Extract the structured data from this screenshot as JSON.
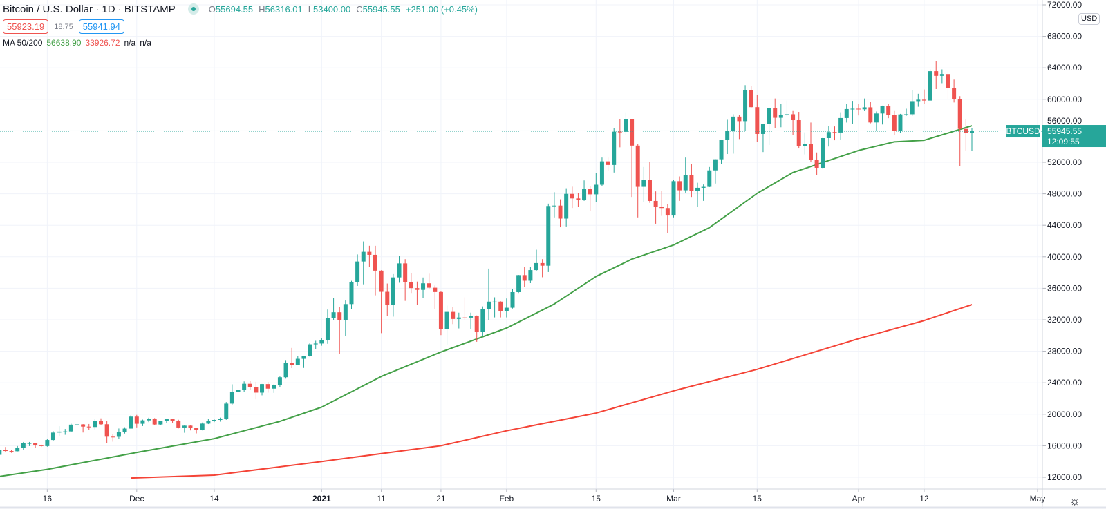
{
  "header": {
    "title": "Bitcoin / U.S. Dollar · 1D · BITSTAMP",
    "ohlc": {
      "o_label": "O",
      "o": "55694.55",
      "h_label": "H",
      "h": "56316.01",
      "l_label": "L",
      "l": "53400.00",
      "c_label": "C",
      "c": "55945.55",
      "change": "+251.00 (+0.45%)"
    },
    "bid": "55923.19",
    "spread": "18.75",
    "ask": "55941.94",
    "ma_label": "MA 50/200",
    "ma50_value": "56638.90",
    "ma200_value": "33926.72",
    "na1": "n/a",
    "na2": "n/a"
  },
  "price_axis": {
    "currency_button": "USD",
    "symbol_tag": "BTCUSD",
    "last_price": "55945.55",
    "countdown": "12:09:55"
  },
  "colors": {
    "up": "#26a69a",
    "down": "#ef5350",
    "ma50": "#43a047",
    "ma200": "#f44336",
    "grid": "#f0f3fa"
  },
  "chart_data": {
    "type": "candlestick",
    "first_date": "2020-11-08",
    "first_open": 14850,
    "close": [
      15480,
      15330,
      15300,
      15700,
      16300,
      16330,
      16070,
      15960,
      16730,
      17670,
      17800,
      17820,
      18680,
      18710,
      18430,
      18380,
      19170,
      18730,
      17150,
      17140,
      17730,
      18180,
      19700,
      18790,
      19220,
      19450,
      18700,
      19150,
      19370,
      19190,
      18320,
      18550,
      18250,
      18040,
      18810,
      19160,
      19280,
      19440,
      21350,
      22840,
      23110,
      23870,
      23480,
      22750,
      23830,
      23250,
      23720,
      24700,
      26490,
      26280,
      27040,
      27360,
      28880,
      28980,
      29380,
      32190,
      32950,
      31970,
      33990,
      36800,
      39400,
      40630,
      40250,
      38240,
      35550,
      33910,
      37380,
      39160,
      36770,
      36020,
      35800,
      36630,
      36070,
      35520,
      30830,
      33000,
      32100,
      32290,
      32270,
      32510,
      30430,
      33400,
      34300,
      34300,
      33110,
      33530,
      35510,
      37670,
      36960,
      38310,
      39200,
      38870,
      46450,
      46500,
      44850,
      47990,
      47410,
      47250,
      48600,
      47930,
      49150,
      52120,
      51660,
      55890,
      55870,
      57480,
      54120,
      48880,
      49740,
      47090,
      46340,
      46190,
      45240,
      49600,
      48440,
      50350,
      48380,
      48760,
      48880,
      50970,
      52380,
      54880,
      55960,
      57800,
      57230,
      61190,
      59000,
      55600,
      56900,
      58900,
      57650,
      58030,
      58100,
      57350,
      54080,
      54340,
      52300,
      51300,
      55070,
      55840,
      55780,
      57620,
      58760,
      58800,
      58730,
      58980,
      57060,
      58200,
      59130,
      58050,
      56000,
      58080,
      58100,
      59770,
      59950,
      59840,
      63570,
      62980,
      63210,
      61390,
      60070,
      56240,
      55694.55,
      55945.55
    ],
    "high": [
      15650,
      15840,
      15480,
      15960,
      16480,
      16480,
      16330,
      16140,
      16880,
      17850,
      18480,
      18130,
      18800,
      18960,
      18750,
      18760,
      19420,
      19480,
      19160,
      17450,
      18190,
      18350,
      19850,
      19920,
      19320,
      19560,
      19510,
      19180,
      19400,
      19420,
      19300,
      18650,
      18570,
      18300,
      18950,
      19400,
      19350,
      19570,
      21550,
      23800,
      23290,
      24170,
      24280,
      24120,
      23850,
      24100,
      23800,
      24800,
      26880,
      28420,
      27410,
      27400,
      29000,
      29330,
      29690,
      33300,
      34800,
      33600,
      34450,
      36950,
      40300,
      41950,
      41400,
      41400,
      38300,
      36600,
      37800,
      40100,
      39700,
      37950,
      36850,
      37370,
      37850,
      36350,
      35600,
      33800,
      33650,
      32900,
      34850,
      32900,
      32550,
      33700,
      38500,
      34850,
      34350,
      34700,
      35900,
      37700,
      38700,
      38700,
      40900,
      39700,
      46750,
      48200,
      47300,
      48700,
      48900,
      48100,
      49700,
      49000,
      50600,
      52600,
      52600,
      56350,
      57500,
      58350,
      57500,
      54300,
      51400,
      52000,
      48300,
      48400,
      46650,
      49800,
      50200,
      52600,
      51800,
      49400,
      49180,
      51400,
      52400,
      54880,
      57400,
      58100,
      58000,
      61800,
      61700,
      60600,
      56900,
      58950,
      60100,
      59450,
      59850,
      58600,
      58400,
      55800,
      57050,
      53250,
      55100,
      56600,
      56550,
      58350,
      59400,
      59800,
      59450,
      60100,
      59700,
      58450,
      59200,
      59450,
      58600,
      58150,
      58800,
      61200,
      60700,
      61250,
      63800,
      64850,
      63800,
      63550,
      62500,
      60400,
      57450,
      56316.01
    ],
    "low": [
      14800,
      15200,
      15100,
      15280,
      15440,
      15960,
      15730,
      15850,
      15880,
      16560,
      17220,
      17390,
      17740,
      18430,
      17680,
      18000,
      18080,
      18600,
      16300,
      16520,
      16880,
      17550,
      18180,
      18330,
      18500,
      19000,
      18580,
      18610,
      18910,
      18910,
      18200,
      17650,
      17950,
      17570,
      17950,
      18750,
      19000,
      19060,
      19290,
      21230,
      22350,
      22800,
      23090,
      21900,
      22400,
      22750,
      22720,
      23450,
      24520,
      25860,
      26280,
      25880,
      27320,
      28250,
      28700,
      28950,
      32000,
      27700,
      29900,
      33350,
      36300,
      36500,
      38750,
      35100,
      30300,
      32500,
      32400,
      36700,
      34400,
      35400,
      33850,
      34800,
      35850,
      33400,
      30050,
      28850,
      31450,
      30900,
      31900,
      30850,
      29200,
      29880,
      31950,
      32300,
      32300,
      32300,
      33430,
      35400,
      36200,
      36650,
      38150,
      37400,
      38060,
      45000,
      43750,
      43850,
      46200,
      46300,
      47100,
      45800,
      47000,
      48950,
      50950,
      50700,
      53900,
      55500,
      47600,
      45000,
      47000,
      46850,
      44200,
      45200,
      43050,
      45000,
      47100,
      48150,
      47600,
      46300,
      47100,
      48850,
      49300,
      51800,
      53050,
      53100,
      54950,
      55950,
      58950,
      54600,
      53300,
      54200,
      56300,
      56450,
      57850,
      55500,
      53750,
      53000,
      52000,
      50400,
      51250,
      54000,
      54800,
      54900,
      57050,
      56850,
      57950,
      58500,
      56950,
      56000,
      56800,
      57600,
      55500,
      55750,
      57900,
      57900,
      59050,
      59400,
      59850,
      61300,
      62050,
      60000,
      59600,
      51500,
      53500,
      53400
    ],
    "ma50": [
      [
        0,
        12100
      ],
      [
        8,
        13000
      ],
      [
        23,
        15150
      ],
      [
        36,
        16900
      ],
      [
        47,
        19100
      ],
      [
        54,
        20900
      ],
      [
        64,
        24800
      ],
      [
        74,
        27900
      ],
      [
        85,
        30950
      ],
      [
        93,
        34000
      ],
      [
        100,
        37500
      ],
      [
        106,
        39700
      ],
      [
        113,
        41500
      ],
      [
        119,
        43700
      ],
      [
        127,
        48050
      ],
      [
        133,
        50700
      ],
      [
        144,
        53500
      ],
      [
        150,
        54600
      ],
      [
        155,
        54800
      ],
      [
        163,
        56638.9
      ]
    ],
    "ma200": [
      [
        22,
        11900
      ],
      [
        36,
        12260
      ],
      [
        54,
        14000
      ],
      [
        74,
        16000
      ],
      [
        85,
        17900
      ],
      [
        100,
        20150
      ],
      [
        113,
        22970
      ],
      [
        127,
        25700
      ],
      [
        144,
        29600
      ],
      [
        155,
        31900
      ],
      [
        163,
        33926.72
      ]
    ],
    "y_ticks": [
      72000,
      68000,
      64000,
      60000,
      56000,
      52000,
      48000,
      44000,
      40000,
      36000,
      32000,
      28000,
      24000,
      20000,
      16000,
      12000
    ],
    "x_ticks": [
      {
        "label": "16",
        "index": 8
      },
      {
        "label": "Dec",
        "index": 23
      },
      {
        "label": "14",
        "index": 36
      },
      {
        "label": "2021",
        "index": 54
      },
      {
        "label": "11",
        "index": 64
      },
      {
        "label": "21",
        "index": 74
      },
      {
        "label": "Feb",
        "index": 85
      },
      {
        "label": "15",
        "index": 100
      },
      {
        "label": "Mar",
        "index": 113
      },
      {
        "label": "15",
        "index": 127
      },
      {
        "label": "Apr",
        "index": 144
      },
      {
        "label": "12",
        "index": 155
      },
      {
        "label": "May",
        "index": 174
      }
    ],
    "ylim": [
      10500,
      72600
    ],
    "grid": true
  }
}
